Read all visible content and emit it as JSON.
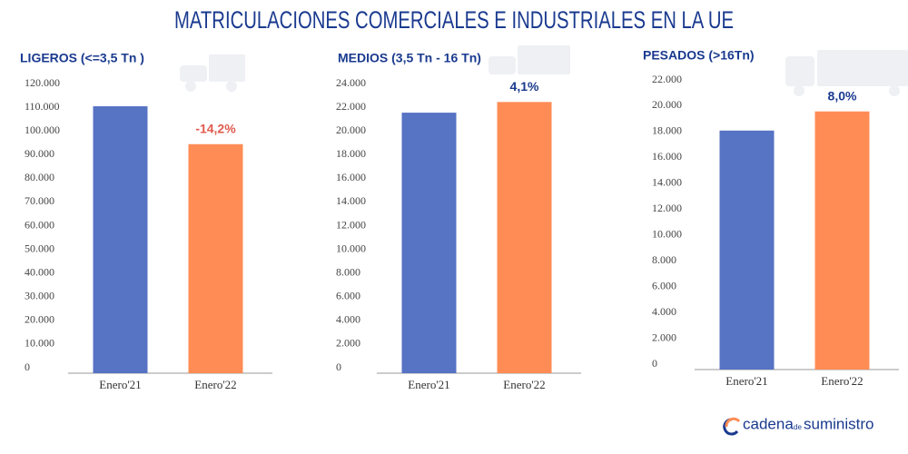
{
  "title": "MATRICULACIONES COMERCIALES E INDUSTRIALES EN LA UE",
  "footer": {
    "brand": "cadena",
    "connector": "de",
    "brand_end": "suministro"
  },
  "chart_data": [
    {
      "type": "bar",
      "title": "LIGEROS (<=3,5 Tn )",
      "categories": [
        "Enero'21",
        "Enero'22"
      ],
      "values": [
        112700,
        96700
      ],
      "colors": [
        "#5673c4",
        "#ff8c55"
      ],
      "annotation": "-14,2%",
      "annotation_color": "#e05a4e",
      "ylim": [
        0,
        120000
      ],
      "yticks": [
        0,
        {
          "value": 10000,
          "label": "10.000"
        },
        {
          "value": 20000,
          "label": "20.000"
        },
        {
          "value": 30000,
          "label": "30.000"
        },
        {
          "value": 40000,
          "label": "40.000"
        },
        {
          "value": 50000,
          "label": "50.000"
        },
        {
          "value": 60000,
          "label": "60.000"
        },
        {
          "value": 70000,
          "label": "70.000"
        },
        {
          "value": 80000,
          "label": "80.000"
        },
        {
          "value": 90000,
          "label": "90.000"
        },
        {
          "value": 100000,
          "label": "100.000"
        },
        {
          "value": 110000,
          "label": "110.000"
        },
        {
          "value": 120000,
          "label": "120.000"
        }
      ]
    },
    {
      "type": "bar",
      "title": "MEDIOS (3,5 Tn - 16 Tn)",
      "categories": [
        "Enero'21",
        "Enero'22"
      ],
      "values": [
        22000,
        22900
      ],
      "colors": [
        "#5673c4",
        "#ff8c55"
      ],
      "annotation": "4,1%",
      "annotation_color": "#1a3a8f",
      "ylim": [
        0,
        24000
      ],
      "yticks": [
        0,
        {
          "value": 2000,
          "label": "2.000"
        },
        {
          "value": 4000,
          "label": "4.000"
        },
        {
          "value": 6000,
          "label": "6.000"
        },
        {
          "value": 8000,
          "label": "8.000"
        },
        {
          "value": 10000,
          "label": "10.000"
        },
        {
          "value": 12000,
          "label": "12.000"
        },
        {
          "value": 14000,
          "label": "14.000"
        },
        {
          "value": 16000,
          "label": "16.000"
        },
        {
          "value": 18000,
          "label": "18.000"
        },
        {
          "value": 20000,
          "label": "20.000"
        },
        {
          "value": 22000,
          "label": "22.000"
        },
        {
          "value": 24000,
          "label": "24.000"
        }
      ]
    },
    {
      "type": "bar",
      "title": "PESADOS (>16Tn)",
      "categories": [
        "Enero'21",
        "Enero'22"
      ],
      "values": [
        18500,
        19980
      ],
      "colors": [
        "#5673c4",
        "#ff8c55"
      ],
      "annotation": "8,0%",
      "annotation_color": "#1a3a8f",
      "ylim": [
        0,
        22000
      ],
      "yticks": [
        0,
        {
          "value": 2000,
          "label": "2.000"
        },
        {
          "value": 4000,
          "label": "4.000"
        },
        {
          "value": 6000,
          "label": "6.000"
        },
        {
          "value": 8000,
          "label": "8.000"
        },
        {
          "value": 10000,
          "label": "10.000"
        },
        {
          "value": 12000,
          "label": "12.000"
        },
        {
          "value": 14000,
          "label": "14.000"
        },
        {
          "value": 16000,
          "label": "16.000"
        },
        {
          "value": 18000,
          "label": "18.000"
        },
        {
          "value": 20000,
          "label": "20.000"
        },
        {
          "value": 22000,
          "label": "22.000"
        }
      ]
    }
  ]
}
